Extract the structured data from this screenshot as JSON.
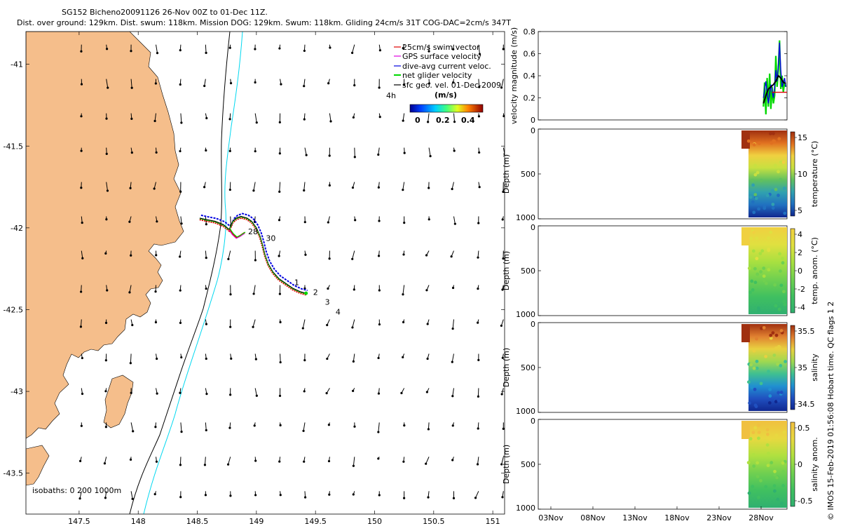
{
  "header": {
    "title_line1": "SG152 Bicheno20091126 26-Nov 00Z to 01-Dec 11Z.",
    "title_line2": "Dist. over ground: 129km. Dist. swum: 118km. Mission DOG: 129km. Swum: 118km. Gliding 24cm/s 31T COG-DAC=2cm/s 347T"
  },
  "side_note": "© IMOS 15-Feb-2019 01:56:08 Hobart time. QC flags 1  2",
  "colors": {
    "land": "#F5BE8B",
    "isobath_200": "#000000",
    "isobath_1000": "#00D8F0",
    "swim": "#E00000",
    "gps": "#E000E0",
    "dac": "#0000E0",
    "net": "#00D800",
    "sfc": "#000000"
  },
  "chart_data": [
    {
      "type": "scatter",
      "name_key": "map",
      "xlim": [
        147.05,
        151.1
      ],
      "ylim": [
        -43.75,
        -40.8
      ],
      "xticks": [
        147.5,
        148,
        148.5,
        149,
        149.5,
        150,
        150.5,
        151
      ],
      "xtick_labels": [
        "147.5",
        "148",
        "148.5",
        "149",
        "149.5",
        "150",
        "150.5",
        "151"
      ],
      "yticks": [
        -41,
        -41.5,
        -42,
        -42.5,
        -43,
        -43.5
      ],
      "ytick_labels": [
        "-41",
        "-41.5",
        "-42",
        "-42.5",
        "-43",
        "-43.5"
      ],
      "isobaths_label": "isobaths: 0   200   1000m",
      "legend": {
        "placement": "top-right",
        "entries": [
          {
            "label": "25cm/s swim vector",
            "color": "#E00000"
          },
          {
            "label": "GPS surface velocity",
            "color": "#E000E0"
          },
          {
            "label": "dive-avg current veloc.",
            "color": "#0000E0"
          },
          {
            "label": "net glider velocity",
            "color": "#00D800"
          },
          {
            "label": "sfc geo. vel. 01-Dec-2009",
            "color": "#000000"
          }
        ]
      },
      "colorbar": {
        "label_h": "4h",
        "units": "(m/s)",
        "ticks": [
          "0",
          "0.2",
          "0.4"
        ],
        "range": [
          0,
          0.5
        ]
      },
      "track_days": [
        {
          "label": "28",
          "lon": 148.93,
          "lat": -42.04
        },
        {
          "label": "30",
          "lon": 149.08,
          "lat": -42.08
        },
        {
          "label": "1",
          "lon": 149.32,
          "lat": -42.35
        },
        {
          "label": "2",
          "lon": 149.48,
          "lat": -42.41
        },
        {
          "label": "3",
          "lon": 149.58,
          "lat": -42.47
        },
        {
          "label": "4",
          "lon": 149.67,
          "lat": -42.53
        }
      ],
      "track": {
        "lon": [
          148.52,
          148.58,
          148.65,
          148.72,
          148.77,
          148.8,
          148.83,
          148.87,
          148.92,
          148.96,
          149.0,
          149.03,
          149.05,
          149.07,
          149.1,
          149.14,
          149.19,
          149.25,
          149.31,
          149.37,
          149.42
        ],
        "lat": [
          -41.94,
          -41.95,
          -41.96,
          -41.98,
          -42.01,
          -41.96,
          -41.94,
          -41.93,
          -41.94,
          -41.96,
          -42.0,
          -42.05,
          -42.1,
          -42.16,
          -42.22,
          -42.27,
          -42.31,
          -42.34,
          -42.37,
          -42.39,
          -42.4
        ]
      },
      "hook": {
        "lon": [
          148.77,
          148.8,
          148.83,
          148.86,
          148.9
        ],
        "lat": [
          -42.01,
          -42.04,
          -42.06,
          -42.05,
          -42.03
        ]
      },
      "end_marker": {
        "lon": 149.42,
        "lat": -42.4
      },
      "vector_grid": {
        "lon_start": 147.52,
        "lon_step": 0.21,
        "lon_count": 20,
        "lat_start": -40.88,
        "lat_step": -0.21,
        "lat_count": 14
      }
    },
    {
      "type": "line",
      "name_key": "velocity",
      "ylabel": "velocity magnitude (m/s)",
      "ylim": [
        0,
        0.8
      ],
      "yticks": [
        "0",
        "0.2",
        "0.4",
        "0.6",
        "0.8"
      ],
      "xdomain": [
        0,
        1
      ],
      "series": [
        {
          "key": "net",
          "color": "#00D800",
          "x": [
            0.905,
            0.91,
            0.915,
            0.92,
            0.925,
            0.93,
            0.935,
            0.94,
            0.945,
            0.95,
            0.955,
            0.96,
            0.965,
            0.97,
            0.975,
            0.98,
            0.985,
            0.99,
            0.995
          ],
          "y": [
            0.12,
            0.34,
            0.05,
            0.38,
            0.12,
            0.42,
            0.1,
            0.3,
            0.15,
            0.22,
            0.58,
            0.3,
            0.45,
            0.72,
            0.28,
            0.4,
            0.25,
            0.35,
            0.3
          ]
        },
        {
          "key": "dac",
          "color": "#0000E0",
          "x": [
            0.905,
            0.915,
            0.925,
            0.935,
            0.945,
            0.95,
            0.955,
            0.96,
            0.965,
            0.97,
            0.975,
            0.98,
            0.99,
            0.995
          ],
          "y": [
            0.2,
            0.35,
            0.15,
            0.32,
            0.2,
            0.3,
            0.45,
            0.35,
            0.5,
            0.7,
            0.45,
            0.3,
            0.38,
            0.3
          ]
        },
        {
          "key": "swim",
          "color": "#E00000",
          "x": [
            0.94,
            1.0
          ],
          "y": [
            0.25,
            0.25
          ]
        },
        {
          "key": "mean",
          "color": "#000000",
          "x": [
            0.905,
            0.915,
            0.925,
            0.935,
            0.945,
            0.955,
            0.965,
            0.975,
            0.985,
            0.995
          ],
          "y": [
            0.15,
            0.22,
            0.28,
            0.3,
            0.32,
            0.35,
            0.4,
            0.38,
            0.34,
            0.33
          ]
        }
      ]
    },
    {
      "type": "heatmap",
      "name_key": "temperature",
      "ylabel": "Depth (m)",
      "cblabel": "temperature (°C)",
      "ylim": [
        1000,
        0
      ],
      "yticks": [
        "0",
        "500",
        "1000"
      ],
      "cbticks": [
        "15",
        "10",
        "5"
      ],
      "palette": [
        "#A03010",
        "#E07020",
        "#F0D040",
        "#C8E040",
        "#60C060",
        "#30A0B0",
        "#2070C0",
        "#102890"
      ]
    },
    {
      "type": "heatmap",
      "name_key": "temp_anom",
      "ylabel": "Depth (m)",
      "cblabel": "temp. anom. (°C)",
      "ylim": [
        1000,
        0
      ],
      "yticks": [
        "0",
        "500",
        "1000"
      ],
      "cbticks": [
        "4",
        "2",
        "0",
        "-2",
        "-4"
      ],
      "palette": [
        "#F0D040",
        "#E0E040",
        "#A8E040",
        "#70D050",
        "#40C060",
        "#30B070"
      ]
    },
    {
      "type": "heatmap",
      "name_key": "salinity",
      "ylabel": "Depth (m)",
      "cblabel": "salinity",
      "ylim": [
        1000,
        0
      ],
      "yticks": [
        "0",
        "500",
        "1000"
      ],
      "cbticks": [
        "35.5",
        "35",
        "34.5"
      ],
      "palette": [
        "#A03010",
        "#E08030",
        "#E8D040",
        "#A0D850",
        "#40C090",
        "#2090D0",
        "#2050C0",
        "#102890"
      ]
    },
    {
      "type": "heatmap",
      "name_key": "salinity_anom",
      "ylabel": "Depth (m)",
      "cblabel": "salinity anom.",
      "ylim": [
        1000,
        0
      ],
      "yticks": [
        "0",
        "500",
        "1000"
      ],
      "cbticks": [
        "0.5",
        "0",
        "-0.5"
      ],
      "palette": [
        "#F0C040",
        "#E8D840",
        "#B0E040",
        "#70D050",
        "#40C060",
        "#30B070"
      ]
    }
  ],
  "time_axis": {
    "ticks": [
      "03Nov",
      "08Nov",
      "13Nov",
      "18Nov",
      "23Nov",
      "28Nov"
    ]
  }
}
